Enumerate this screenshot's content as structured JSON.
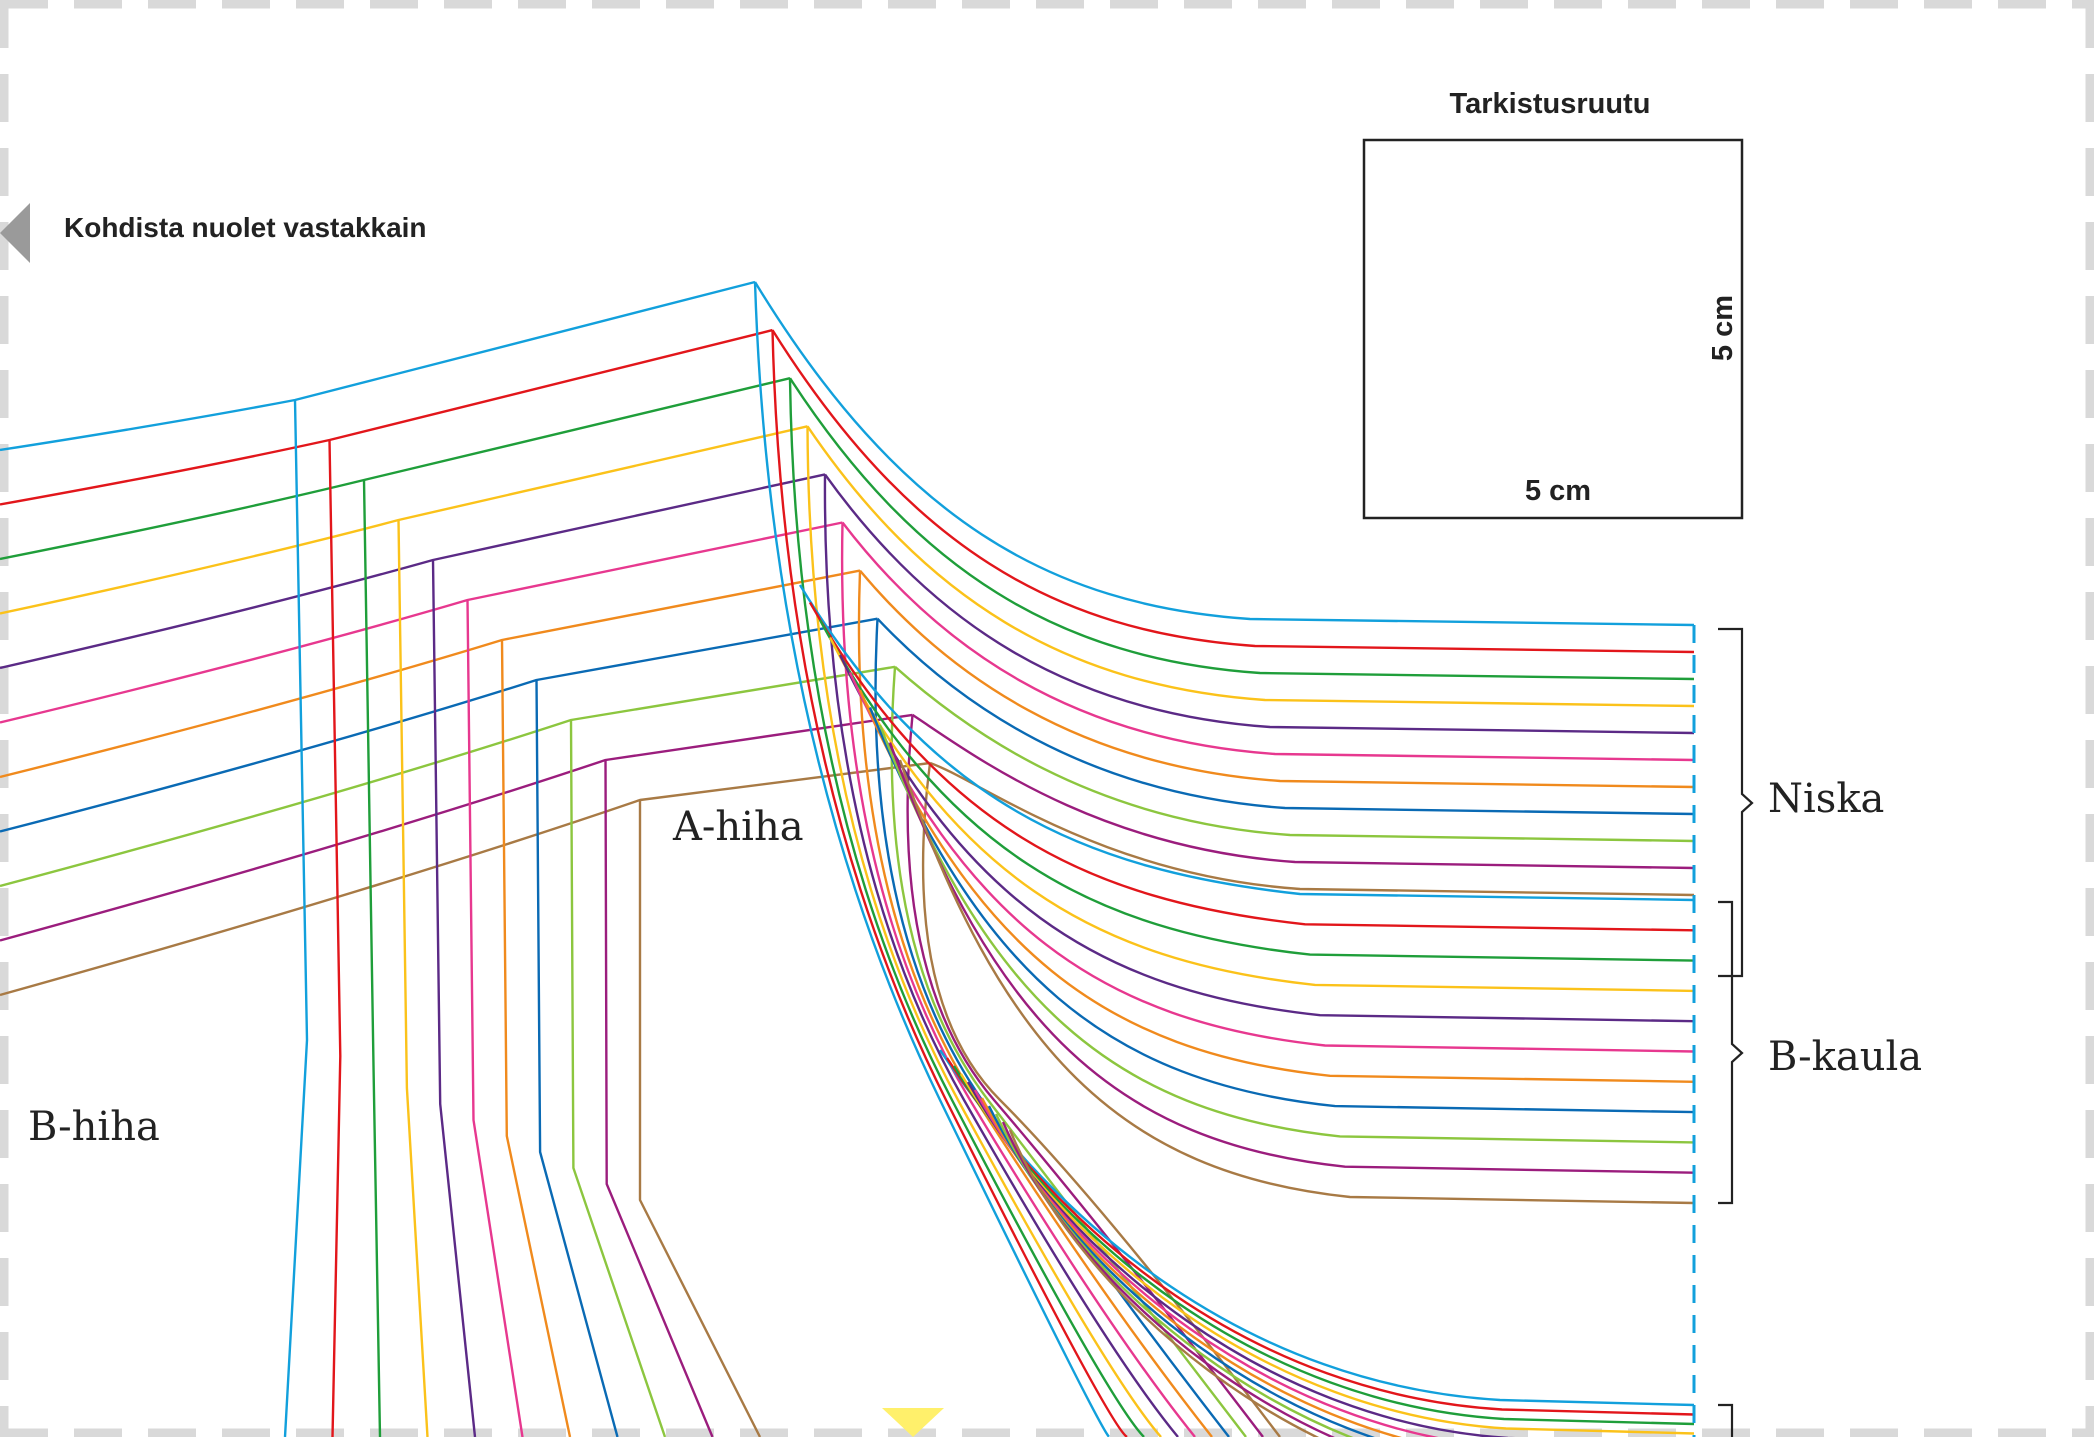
{
  "sheet": {
    "align_note": "Kohdista nuolet vastakkain",
    "check_square": {
      "title": "Tarkistusruutu",
      "width_label": "5 cm",
      "height_label": "5 cm"
    }
  },
  "pieces": {
    "sleeve_a": "A-hiha",
    "sleeve_b": "B-hiha",
    "neck": "Niska",
    "collar_b": "B-kaula"
  },
  "colors": {
    "sizes": [
      "#12a0dc",
      "#e2161b",
      "#1f9e3a",
      "#fbc21a",
      "#5b2a86",
      "#e7388f",
      "#f08a1d",
      "#0a6ab4",
      "#8cc63f",
      "#9b1d7d",
      "#a87a45"
    ],
    "border_dash": "#d9d9d9",
    "arrow_grey": "#9a9a9a",
    "arrow_yellow": "#fff06b",
    "bracket": "#222222"
  },
  "icons": {
    "left_arrow": "triangle-left-icon",
    "bottom_arrow": "triangle-down-icon"
  }
}
